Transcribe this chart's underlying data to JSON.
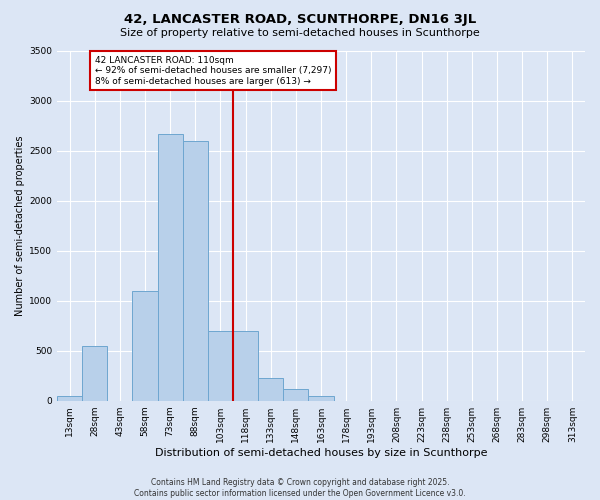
{
  "title": "42, LANCASTER ROAD, SCUNTHORPE, DN16 3JL",
  "subtitle": "Size of property relative to semi-detached houses in Scunthorpe",
  "xlabel": "Distribution of semi-detached houses by size in Scunthorpe",
  "ylabel": "Number of semi-detached properties",
  "bin_labels": [
    "13sqm",
    "28sqm",
    "43sqm",
    "58sqm",
    "73sqm",
    "88sqm",
    "103sqm",
    "118sqm",
    "133sqm",
    "148sqm",
    "163sqm",
    "178sqm",
    "193sqm",
    "208sqm",
    "223sqm",
    "238sqm",
    "253sqm",
    "268sqm",
    "283sqm",
    "298sqm",
    "313sqm"
  ],
  "bar_values": [
    50,
    550,
    0,
    1100,
    2670,
    2600,
    700,
    700,
    230,
    115,
    50,
    0,
    0,
    0,
    0,
    0,
    0,
    0,
    0,
    0,
    0
  ],
  "bar_color": "#b8d0ea",
  "bar_edge_color": "#6ea6d0",
  "vline_color": "#cc0000",
  "annotation_text": "42 LANCASTER ROAD: 110sqm\n← 92% of semi-detached houses are smaller (7,297)\n8% of semi-detached houses are larger (613) →",
  "annotation_box_color": "#ffffff",
  "annotation_box_edge": "#cc0000",
  "ylim": [
    0,
    3500
  ],
  "yticks": [
    0,
    500,
    1000,
    1500,
    2000,
    2500,
    3000,
    3500
  ],
  "background_color": "#dce6f5",
  "plot_bg_color": "#dce6f5",
  "footer_line1": "Contains HM Land Registry data © Crown copyright and database right 2025.",
  "footer_line2": "Contains public sector information licensed under the Open Government Licence v3.0.",
  "title_fontsize": 9.5,
  "subtitle_fontsize": 8,
  "xlabel_fontsize": 8,
  "ylabel_fontsize": 7,
  "tick_fontsize": 6.5,
  "footer_fontsize": 5.5,
  "annot_fontsize": 6.5
}
